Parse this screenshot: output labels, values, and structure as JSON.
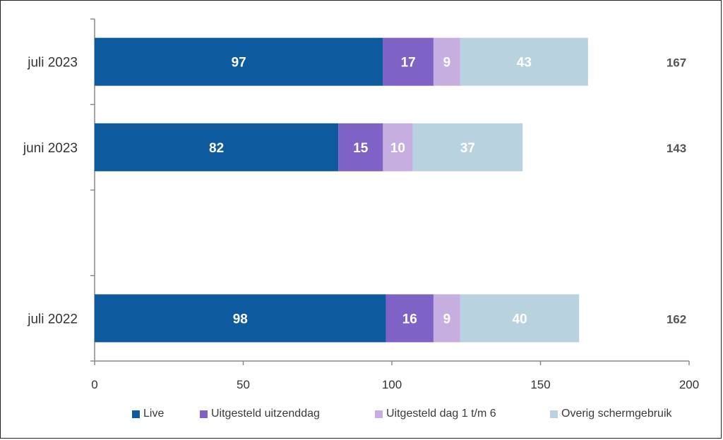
{
  "chart_data": {
    "type": "bar",
    "orientation": "horizontal",
    "stacked": true,
    "categories": [
      "juli 2023",
      "juni 2023",
      "",
      "juli 2022"
    ],
    "series": [
      {
        "name": "Live",
        "color": "#0e5a9e",
        "values": [
          97,
          82,
          null,
          98
        ]
      },
      {
        "name": "Uitgesteld uitzenddag",
        "color": "#7f62c6",
        "values": [
          17,
          15,
          null,
          16
        ]
      },
      {
        "name": "Uitgesteld dag 1 t/m 6",
        "color": "#c7aee0",
        "values": [
          9,
          10,
          null,
          9
        ]
      },
      {
        "name": "Overig schermgebruik",
        "color": "#b8d3df",
        "values": [
          43,
          37,
          null,
          40
        ]
      }
    ],
    "totals": [
      167,
      143,
      null,
      162
    ],
    "total_labels": [
      "167",
      "143",
      "",
      "162"
    ],
    "xlim": [
      0,
      200
    ],
    "xticks": [
      0,
      50,
      100,
      150,
      200
    ],
    "xtick_labels": [
      "0",
      "50",
      "100",
      "150",
      "200"
    ],
    "grid": false,
    "legend_position": "bottom",
    "value_label_colors": [
      "#ffffff",
      "#ffffff",
      "#ffffff",
      "#ffffff"
    ]
  }
}
